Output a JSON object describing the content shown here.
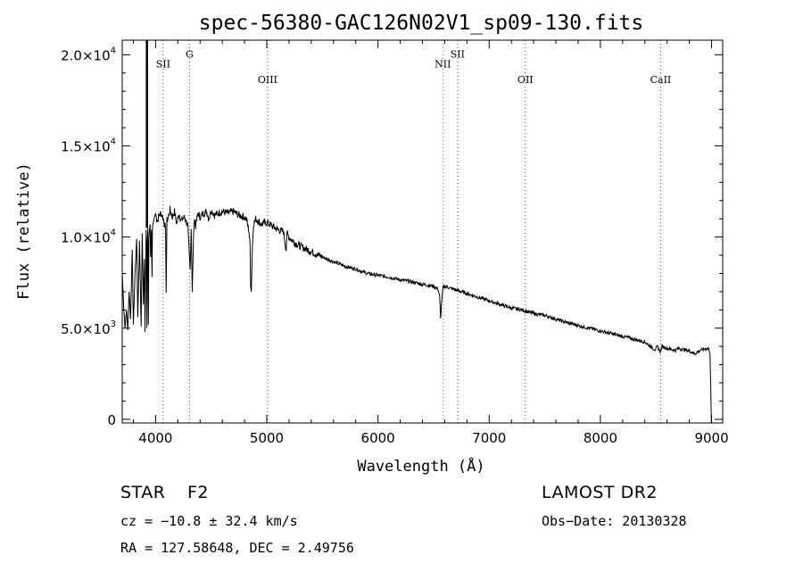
{
  "chart_data": {
    "type": "line",
    "title": "spec-56380-GAC126N02V1_sp09-130.fits",
    "xlabel": "Wavelength (Å)",
    "ylabel": "Flux (relative)",
    "xlim": [
      3700,
      9100
    ],
    "ylim": [
      -200,
      20800
    ],
    "xticks": [
      {
        "value": 4000,
        "label": "4000"
      },
      {
        "value": 5000,
        "label": "5000"
      },
      {
        "value": 6000,
        "label": "6000"
      },
      {
        "value": 7000,
        "label": "7000"
      },
      {
        "value": 8000,
        "label": "8000"
      },
      {
        "value": 9000,
        "label": "9000"
      }
    ],
    "yticks": [
      {
        "value": 0,
        "mantissa": "0",
        "exponent": ""
      },
      {
        "value": 5000,
        "mantissa": "5.0×10",
        "exponent": "3"
      },
      {
        "value": 10000,
        "mantissa": "1.0×10",
        "exponent": "4"
      },
      {
        "value": 15000,
        "mantissa": "1.5×10",
        "exponent": "4"
      },
      {
        "value": 20000,
        "mantissa": "2.0×10",
        "exponent": "4"
      }
    ],
    "line_markers": [
      {
        "name": "SII",
        "wavelength": 4068,
        "label_y": 19300
      },
      {
        "name": "G",
        "wavelength": 4305,
        "label_y": 19850
      },
      {
        "name": "OIII",
        "wavelength": 5007,
        "label_y": 18450
      },
      {
        "name": "NII",
        "wavelength": 6583,
        "label_y": 19300
      },
      {
        "name": "SII",
        "wavelength": 6716,
        "label_y": 19850
      },
      {
        "name": "OII",
        "wavelength": 7325,
        "label_y": 18450
      },
      {
        "name": "CaII",
        "wavelength": 8542,
        "label_y": 18450
      }
    ],
    "series": [
      {
        "x": [
          3700,
          3712,
          3725,
          3738,
          3750,
          3762,
          3775,
          3790,
          3800,
          3815,
          3830,
          3840,
          3855,
          3870,
          3880,
          3890,
          3900,
          3905,
          3915,
          3918,
          3922,
          3926,
          3930,
          3935,
          3940,
          3950,
          3955,
          3962,
          3968,
          3972,
          3980,
          3990,
          4000,
          4010,
          4020,
          4030,
          4050,
          4070,
          4085,
          4090,
          4095,
          4102,
          4110,
          4130,
          4150,
          4170,
          4190,
          4210,
          4230,
          4260,
          4290,
          4300,
          4310,
          4320,
          4330,
          4340,
          4345,
          4350,
          4360,
          4380,
          4400,
          4430,
          4460,
          4480,
          4500,
          4530,
          4560,
          4600,
          4650,
          4700,
          4750,
          4800,
          4820,
          4840,
          4850,
          4855,
          4861,
          4866,
          4872,
          4880,
          4900,
          4920,
          4950,
          5000,
          5050,
          5100,
          5150,
          5170,
          5175,
          5180,
          5200,
          5250,
          5300,
          5400,
          5500,
          5600,
          5700,
          5800,
          5900,
          6000,
          6100,
          6200,
          6300,
          6400,
          6500,
          6540,
          6555,
          6563,
          6570,
          6585,
          6600,
          6700,
          6800,
          6900,
          7000,
          7100,
          7200,
          7300,
          7400,
          7500,
          7600,
          7700,
          7800,
          7900,
          8000,
          8100,
          8200,
          8300,
          8400,
          8450,
          8498,
          8510,
          8542,
          8555,
          8600,
          8662,
          8680,
          8700,
          8800,
          8850,
          8900,
          8940,
          8960,
          8975,
          8985,
          8992,
          8998
        ],
        "y": [
          8000,
          6300,
          5000,
          6000,
          4900,
          7000,
          5500,
          9300,
          5200,
          8000,
          9900,
          5600,
          9800,
          5100,
          10200,
          6300,
          8800,
          4800,
          10400,
          9600,
          5000,
          9800,
          10500,
          5200,
          10000,
          10700,
          8900,
          10400,
          7800,
          10600,
          10800,
          11100,
          11300,
          11000,
          10900,
          11200,
          11300,
          11000,
          10600,
          10200,
          7100,
          10900,
          11000,
          11500,
          11100,
          11400,
          10700,
          11300,
          10900,
          11100,
          10600,
          9300,
          8200,
          10500,
          6900,
          9700,
          10800,
          11000,
          10600,
          11300,
          11100,
          11300,
          11400,
          11000,
          11500,
          11200,
          11300,
          11400,
          11300,
          11400,
          11200,
          11100,
          10900,
          10300,
          9500,
          7500,
          7000,
          8500,
          9700,
          10700,
          11000,
          10900,
          10700,
          10800,
          10600,
          10400,
          10300,
          9500,
          9300,
          10200,
          10000,
          9700,
          9500,
          9200,
          8900,
          8650,
          8400,
          8250,
          8000,
          7900,
          7800,
          7650,
          7550,
          7400,
          7300,
          7150,
          6700,
          5500,
          6300,
          7200,
          7300,
          7100,
          6900,
          6700,
          6500,
          6300,
          6100,
          6000,
          5800,
          5700,
          5500,
          5300,
          5150,
          5000,
          4850,
          4700,
          4550,
          4400,
          4250,
          4000,
          3800,
          4000,
          3700,
          4000,
          3900,
          3800,
          3800,
          3900,
          3750,
          3600,
          3800,
          3850,
          3900,
          3850,
          3700,
          2000,
          -200
        ]
      }
    ]
  },
  "info": {
    "class": "STAR",
    "subclass": "F2",
    "survey": "LAMOST DR2",
    "redshift": "cz = −10.8 ± 32.4 km/s",
    "obs_date": "Obs−Date: 20130328",
    "coords": "RA = 127.58648, DEC =   2.49756"
  },
  "colors": {
    "axis": "#000000",
    "spectrum": "#000000",
    "marker": "#b03030"
  }
}
